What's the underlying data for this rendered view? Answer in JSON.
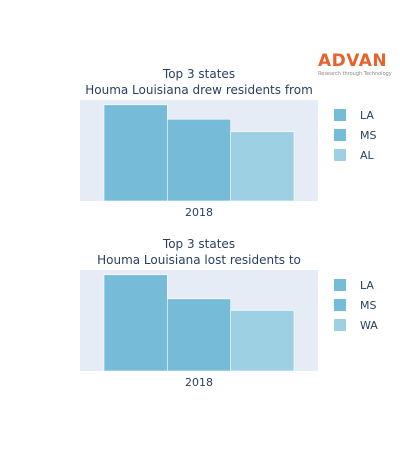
{
  "logo": {
    "word": "ADVAN",
    "tagline": "Research through Technology"
  },
  "colors": [
    "#76bcd8",
    "#76bcd8",
    "#9dd0e2"
  ],
  "chart_data": [
    {
      "type": "bar",
      "title_lines": [
        "Top 3 states",
        "Houma Louisiana drew residents from"
      ],
      "categories": [
        "2018"
      ],
      "series": [
        {
          "name": "LA",
          "values": [
            100
          ]
        },
        {
          "name": "MS",
          "values": [
            85
          ]
        },
        {
          "name": "AL",
          "values": [
            72
          ]
        }
      ],
      "ylim": [
        0,
        105
      ],
      "legend": "right"
    },
    {
      "type": "bar",
      "title_lines": [
        "Top 3 states",
        "Houma Louisiana lost residents to"
      ],
      "categories": [
        "2018"
      ],
      "series": [
        {
          "name": "LA",
          "values": [
            100
          ]
        },
        {
          "name": "MS",
          "values": [
            75
          ]
        },
        {
          "name": "WA",
          "values": [
            63
          ]
        }
      ],
      "ylim": [
        0,
        105
      ],
      "legend": "right"
    }
  ]
}
